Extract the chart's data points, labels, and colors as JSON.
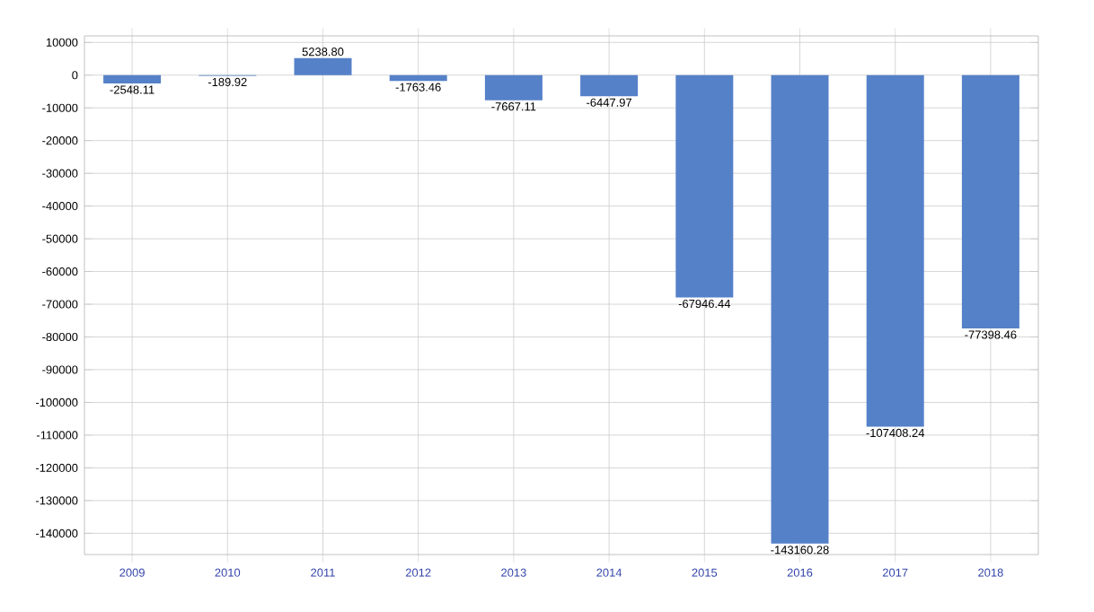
{
  "chart_data": {
    "type": "bar",
    "categories": [
      "2009",
      "2010",
      "2011",
      "2012",
      "2013",
      "2014",
      "2015",
      "2016",
      "2017",
      "2018"
    ],
    "values": [
      -2548.11,
      -189.92,
      5238.8,
      -1763.46,
      -7667.11,
      -6447.97,
      -67946.44,
      -143160.28,
      -107408.24,
      -77398.46
    ],
    "value_labels": [
      "-2548.11",
      "-189.92",
      "5238.80",
      "-1763.46",
      "-7667.11",
      "-6447.97",
      "-67946.44",
      "-143160.28",
      "-107408.24",
      "-77398.46"
    ],
    "color": "#5581c8",
    "ylim": [
      -146500,
      12000
    ],
    "yticks": [
      10000,
      0,
      -10000,
      -20000,
      -30000,
      -40000,
      -50000,
      -60000,
      -70000,
      -80000,
      -90000,
      -100000,
      -110000,
      -120000,
      -130000,
      -140000
    ],
    "grid": true
  }
}
